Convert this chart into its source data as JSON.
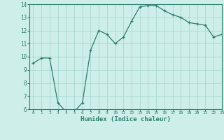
{
  "x": [
    0,
    1,
    2,
    3,
    4,
    5,
    6,
    7,
    8,
    9,
    10,
    11,
    12,
    13,
    14,
    15,
    16,
    17,
    18,
    19,
    20,
    21,
    22,
    23
  ],
  "y": [
    9.5,
    9.9,
    9.9,
    6.5,
    5.8,
    5.8,
    6.5,
    10.5,
    12.0,
    11.7,
    11.0,
    11.5,
    12.7,
    13.8,
    13.9,
    13.9,
    13.5,
    13.2,
    13.0,
    12.6,
    12.5,
    12.4,
    11.5,
    11.7
  ],
  "line_color": "#2e7d6e",
  "marker": "+",
  "marker_size": 3,
  "bg_color": "#cdeee9",
  "grid_color": "#a8d8d2",
  "xlabel": "Humidex (Indice chaleur)",
  "xlim": [
    -0.5,
    23
  ],
  "ylim": [
    6,
    14
  ],
  "yticks": [
    6,
    7,
    8,
    9,
    10,
    11,
    12,
    13,
    14
  ],
  "xtick_fontsize": 4.5,
  "ytick_fontsize": 5.5,
  "xlabel_fontsize": 6.5,
  "tick_color": "#2e7d6e",
  "label_color": "#2e7d6e",
  "spine_color": "#2e7d6e"
}
